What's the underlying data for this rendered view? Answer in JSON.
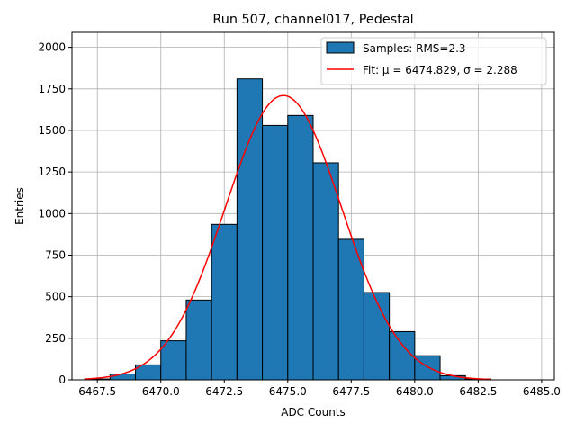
{
  "chart_data": {
    "type": "bar",
    "title": "Run 507, channel017, Pedestal",
    "xlabel": "ADC Counts",
    "ylabel": "Entries",
    "xlim": [
      6466.5,
      6485.5
    ],
    "ylim": [
      0,
      2090
    ],
    "xticks": [
      6467.5,
      6470.0,
      6472.5,
      6475.0,
      6477.5,
      6480.0,
      6482.5,
      6485.0
    ],
    "xtick_labels": [
      "6467.5",
      "6470.0",
      "6472.5",
      "6475.0",
      "6477.5",
      "6480.0",
      "6482.5",
      "6485.0"
    ],
    "yticks": [
      0,
      250,
      500,
      750,
      1000,
      1250,
      1500,
      1750,
      2000
    ],
    "ytick_labels": [
      "0",
      "250",
      "500",
      "750",
      "1000",
      "1250",
      "1500",
      "1750",
      "2000"
    ],
    "grid": true,
    "legend_position": "top-right",
    "bin_width": 1,
    "bins": [
      {
        "left": 6467,
        "count": 5
      },
      {
        "left": 6468,
        "count": 35
      },
      {
        "left": 6469,
        "count": 90
      },
      {
        "left": 6470,
        "count": 235
      },
      {
        "left": 6471,
        "count": 480
      },
      {
        "left": 6472,
        "count": 935
      },
      {
        "left": 6473,
        "count": 1810
      },
      {
        "left": 6474,
        "count": 1530
      },
      {
        "left": 6475,
        "count": 1590
      },
      {
        "left": 6476,
        "count": 1305
      },
      {
        "left": 6477,
        "count": 845
      },
      {
        "left": 6478,
        "count": 525
      },
      {
        "left": 6479,
        "count": 290
      },
      {
        "left": 6480,
        "count": 145
      },
      {
        "left": 6481,
        "count": 25
      },
      {
        "left": 6482,
        "count": 5
      }
    ],
    "fit": {
      "mu": 6474.829,
      "sigma": 2.288,
      "amplitude": 1710,
      "x_range": [
        6467.0,
        6483.0
      ]
    },
    "series": [
      {
        "name": "Samples: RMS=2.3",
        "kind": "histogram",
        "color": "#1f77b4"
      },
      {
        "name": "Fit: μ = 6474.829, σ = 2.288",
        "kind": "line",
        "color": "#ff0000"
      }
    ]
  }
}
